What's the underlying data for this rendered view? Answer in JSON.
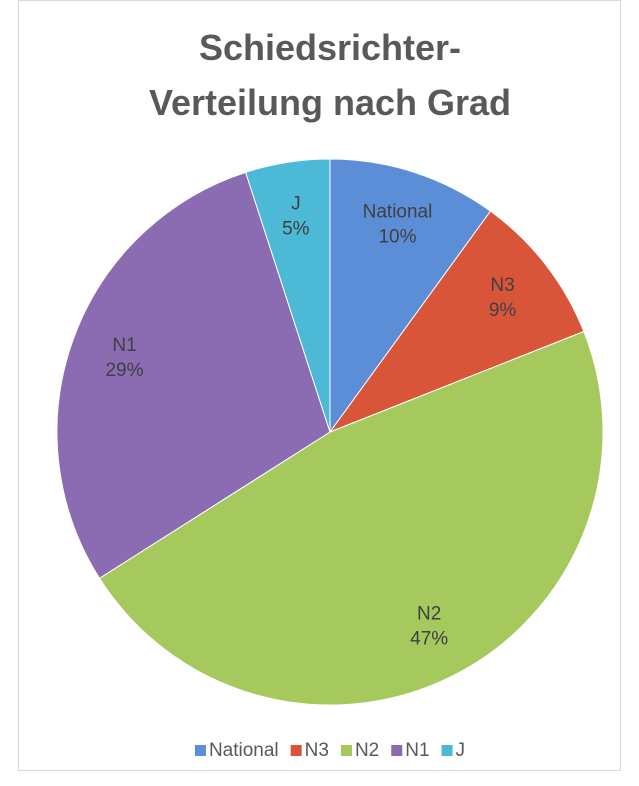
{
  "chart_data": {
    "type": "pie",
    "title": "Schiedsrichter-Verteilung nach Grad",
    "categories": [
      "National",
      "N3",
      "N2",
      "N1",
      "J"
    ],
    "values": [
      10,
      9,
      47,
      29,
      5
    ],
    "value_labels": [
      "10%",
      "9%",
      "47%",
      "29%",
      "5%"
    ],
    "colors": [
      "#5b8ed6",
      "#d9553a",
      "#a6c95e",
      "#8b6bb2",
      "#4cb9d6"
    ],
    "legend": "bottom"
  }
}
